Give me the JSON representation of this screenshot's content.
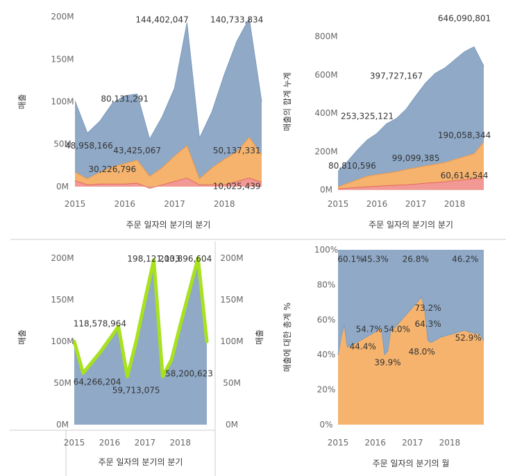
{
  "colors": {
    "blue": "#8fa9c7",
    "orange": "#f5b36e",
    "pink": "#f29895",
    "green": "#a8e21e",
    "red": "#e26a5e"
  },
  "chart_data": [
    {
      "id": "tl",
      "type": "area",
      "stacked": true,
      "x": [
        "2015 Q1",
        "2015 Q2",
        "2015 Q3",
        "2015 Q4",
        "2016 Q1",
        "2016 Q2",
        "2016 Q3",
        "2016 Q4",
        "2017 Q1",
        "2017 Q2",
        "2017 Q3",
        "2017 Q4",
        "2018 Q1",
        "2018 Q2",
        "2018 Q3",
        "2018 Q4"
      ],
      "series": [
        {
          "values": [
            7,
            2,
            3,
            3,
            3,
            4,
            -2,
            2,
            6,
            10,
            2,
            2,
            2,
            6,
            10,
            5
          ]
        },
        {
          "values": [
            10,
            7,
            14,
            20,
            24,
            27,
            14,
            20,
            30,
            38,
            7,
            20,
            30,
            35,
            48,
            32
          ]
        },
        {
          "values": [
            84,
            54,
            60,
            75,
            80,
            78,
            44,
            60,
            80,
            145,
            48,
            66,
            100,
            130,
            140,
            63
          ]
        }
      ],
      "ylim": [
        -5,
        205
      ],
      "yticks": [
        {
          "v": 0,
          "t": "0M"
        },
        {
          "v": 50,
          "t": "50M"
        },
        {
          "v": 100,
          "t": "100M"
        },
        {
          "v": 150,
          "t": "150M"
        },
        {
          "v": 200,
          "t": "200M"
        }
      ],
      "xticks": [
        {
          "i": 0,
          "t": "2015"
        },
        {
          "i": 4,
          "t": "2016"
        },
        {
          "i": 8,
          "t": "2017"
        },
        {
          "i": 12,
          "t": "2018"
        }
      ],
      "ylabel": "매출",
      "xlabel": "주문 일자의 분기의 분기",
      "labels": [
        {
          "i": 7,
          "v": 193,
          "t": "144,402,047"
        },
        {
          "i": 13,
          "v": 193,
          "t": "140,733,834"
        },
        {
          "i": 4,
          "v": 100,
          "t": "80,131,291"
        },
        {
          "i": 0,
          "v": 45,
          "t": "48,958,166"
        },
        {
          "i": 5,
          "v": 39,
          "t": "43,425,067"
        },
        {
          "i": 13,
          "v": 39,
          "t": "50,137,331"
        },
        {
          "i": 3,
          "v": 17,
          "t": "30,226,796"
        },
        {
          "i": 13,
          "v": -3,
          "t": "10,025,439"
        }
      ]
    },
    {
      "id": "tr",
      "type": "area",
      "stacked": true,
      "x": [
        "2015 Q1",
        "2015 Q2",
        "2015 Q3",
        "2015 Q4",
        "2016 Q1",
        "2016 Q2",
        "2016 Q3",
        "2016 Q4",
        "2017 Q1",
        "2017 Q2",
        "2017 Q3",
        "2017 Q4",
        "2018 Q1",
        "2018 Q2",
        "2018 Q3",
        "2018 Q4"
      ],
      "series": [
        {
          "values": [
            5,
            9,
            13,
            16,
            19,
            22,
            24,
            26,
            30,
            35,
            38,
            42,
            48,
            53,
            58,
            60
          ]
        },
        {
          "values": [
            10,
            25,
            40,
            55,
            60,
            65,
            70,
            80,
            85,
            90,
            95,
            100,
            110,
            120,
            130,
            190
          ]
        },
        {
          "values": [
            81,
            116,
            155,
            189,
            215,
            258,
            278,
            314,
            375,
            432,
            475,
            494,
            520,
            547,
            558,
            396
          ]
        }
      ],
      "ylim": [
        -5,
        925
      ],
      "yticks": [
        {
          "v": 0,
          "t": "0M"
        },
        {
          "v": 200,
          "t": "200M"
        },
        {
          "v": 400,
          "t": "400M"
        },
        {
          "v": 600,
          "t": "600M"
        },
        {
          "v": 800,
          "t": "800M"
        }
      ],
      "xticks": [
        {
          "i": 0,
          "t": "2015"
        },
        {
          "i": 4,
          "t": "2016"
        },
        {
          "i": 8,
          "t": "2017"
        },
        {
          "i": 12,
          "t": "2018"
        }
      ],
      "ylabel": "매출의 합계 누계",
      "xlabel": "주문 일자의 분기의 분기",
      "labels": [
        {
          "i": 13,
          "v": 880,
          "t": "646,090,801"
        },
        {
          "i": 6,
          "v": 580,
          "t": "397,727,167"
        },
        {
          "i": 3,
          "v": 370,
          "t": "253,325,121"
        },
        {
          "i": 0,
          "v": 110,
          "t": "80,810,596"
        },
        {
          "i": 13,
          "v": 270,
          "t": "190,058,344"
        },
        {
          "i": 8,
          "v": 150,
          "t": "99,099,385"
        },
        {
          "i": 13,
          "v": 60,
          "t": "60,614,544"
        }
      ]
    },
    {
      "id": "bl",
      "type": "area+line",
      "dual_axis": true,
      "x": [
        "2015 Q1",
        "2015 Q2",
        "2015 Q3",
        "2015 Q4",
        "2016 Q1",
        "2016 Q2",
        "2016 Q3",
        "2016 Q4",
        "2017 Q1",
        "2017 Q2",
        "2017 Q3",
        "2017 Q4",
        "2018 Q1",
        "2018 Q2",
        "2018 Q3",
        "2018 Q4"
      ],
      "area": [
        100,
        62,
        75,
        88,
        103,
        118,
        58,
        100,
        150,
        198,
        58,
        78,
        120,
        160,
        200,
        100
      ],
      "line": [
        100,
        62,
        75,
        88,
        103,
        118,
        58,
        100,
        150,
        198,
        58,
        78,
        120,
        160,
        200,
        100
      ],
      "ylim": [
        0,
        210
      ],
      "yticks": [
        {
          "v": 0,
          "t": "0M"
        },
        {
          "v": 50,
          "t": "50M"
        },
        {
          "v": 100,
          "t": "100M"
        },
        {
          "v": 150,
          "t": "150M"
        },
        {
          "v": 200,
          "t": "200M"
        }
      ],
      "xticks": [
        {
          "i": 0,
          "t": "2015"
        },
        {
          "i": 4,
          "t": "2016"
        },
        {
          "i": 8,
          "t": "2017"
        },
        {
          "i": 12,
          "t": "2018"
        }
      ],
      "ylabel": "매출",
      "ylabel_right": "매출",
      "xlabel": "주문 일자의 분기의 분기",
      "labels": [
        {
          "i": 9,
          "v": 196,
          "t": "198,121,133"
        },
        {
          "i": 14,
          "v": 196,
          "t": "200,896,604"
        },
        {
          "i": 1,
          "v": 118,
          "t": "118,578,964"
        },
        {
          "i": 1,
          "v": 48,
          "t": "64,266,204"
        },
        {
          "i": 7,
          "v": 38,
          "t": "59,713,075"
        },
        {
          "i": 13,
          "v": 58,
          "t": "58,200,623"
        }
      ]
    },
    {
      "id": "br",
      "type": "area",
      "percent": true,
      "x": [
        "2015-01",
        "2015-02",
        "2015-03",
        "2015-04",
        "2015-05",
        "2015-06",
        "2015-07",
        "2015-08",
        "2015-09",
        "2015-10",
        "2015-11",
        "2015-12",
        "2016-01",
        "2016-02",
        "2016-03",
        "2016-04",
        "2016-05",
        "2016-06",
        "2016-07",
        "2016-08",
        "2016-09",
        "2016-10",
        "2016-11",
        "2016-12",
        "2017-01",
        "2017-02",
        "2017-03",
        "2017-04",
        "2017-05",
        "2017-06",
        "2017-07",
        "2017-08",
        "2017-09",
        "2017-10",
        "2017-11",
        "2017-12",
        "2018-01",
        "2018-02",
        "2018-03",
        "2018-04",
        "2018-05",
        "2018-06",
        "2018-07",
        "2018-08",
        "2018-09",
        "2018-10",
        "2018-11",
        "2018-12"
      ],
      "values": [
        39.9,
        50,
        57,
        44.4,
        45,
        46,
        47,
        48,
        49,
        50,
        51,
        52,
        53,
        54.7,
        55,
        40,
        42,
        54,
        55,
        57,
        59,
        61,
        63,
        65,
        67,
        69,
        71,
        73.2,
        64.3,
        48,
        47,
        48,
        49,
        50,
        50.5,
        51,
        51.5,
        52,
        52.5,
        53,
        53.5,
        54,
        52.9,
        53,
        52,
        52.5,
        51,
        48
      ],
      "ylim": [
        0,
        100
      ],
      "yticks": [
        {
          "v": 0,
          "t": "0%"
        },
        {
          "v": 20,
          "t": "20%"
        },
        {
          "v": 40,
          "t": "40%"
        },
        {
          "v": 60,
          "t": "60%"
        },
        {
          "v": 80,
          "t": "80%"
        },
        {
          "v": 100,
          "t": "100%"
        }
      ],
      "xticks": [
        {
          "i": 0,
          "t": "2015"
        },
        {
          "i": 12,
          "t": "2016"
        },
        {
          "i": 24,
          "t": "2017"
        },
        {
          "i": 36,
          "t": "2018"
        }
      ],
      "ylabel": "매출에 대한 총계 %",
      "xlabel": "주문 일자의 분기의 월",
      "labels": [
        {
          "i": 3,
          "v": 93,
          "t": "60.1%"
        },
        {
          "i": 12,
          "v": 93,
          "t": "45.3%"
        },
        {
          "i": 25,
          "v": 93,
          "t": "26.8%"
        },
        {
          "i": 41,
          "v": 93,
          "t": "46.2%"
        },
        {
          "i": 8,
          "v": 43,
          "t": "44.4%"
        },
        {
          "i": 10,
          "v": 53,
          "t": "54.7%"
        },
        {
          "i": 19,
          "v": 53,
          "t": "54.0%"
        },
        {
          "i": 16,
          "v": 34,
          "t": "39.9%"
        },
        {
          "i": 29,
          "v": 65,
          "t": "73.2%"
        },
        {
          "i": 29,
          "v": 56,
          "t": "64.3%"
        },
        {
          "i": 27,
          "v": 40,
          "t": "48.0%"
        },
        {
          "i": 42,
          "v": 48,
          "t": "52.9%"
        }
      ]
    }
  ]
}
